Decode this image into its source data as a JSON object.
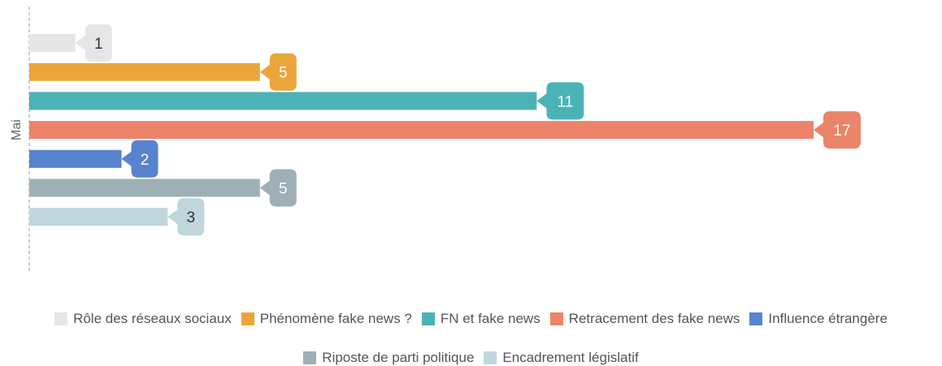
{
  "chart_data": {
    "type": "bar",
    "orientation": "horizontal",
    "categories": [
      "Mai"
    ],
    "ylabel": "Mai",
    "xlim": [
      0,
      17
    ],
    "data_labels": true,
    "legend_position": "bottom",
    "series": [
      {
        "name": "Rôle des réseaux sociaux",
        "values": [
          1
        ],
        "color": "#e6e6e6",
        "label_color": "#333333"
      },
      {
        "name": "Phénomène fake news ?",
        "values": [
          5
        ],
        "color": "#eaa63b",
        "label_color": "#ffffff"
      },
      {
        "name": "FN et fake news",
        "values": [
          11
        ],
        "color": "#4bb3b7",
        "label_color": "#ffffff"
      },
      {
        "name": "Retracement des fake news",
        "values": [
          17
        ],
        "color": "#eb8469",
        "label_color": "#ffffff"
      },
      {
        "name": "Influence étrangère",
        "values": [
          2
        ],
        "color": "#5783cf",
        "label_color": "#ffffff"
      },
      {
        "name": "Riposte de parti politique",
        "values": [
          5
        ],
        "color": "#9eafb6",
        "label_color": "#ffffff"
      },
      {
        "name": "Encadrement législatif",
        "values": [
          3
        ],
        "color": "#bfd6dd",
        "label_color": "#333333"
      }
    ]
  }
}
